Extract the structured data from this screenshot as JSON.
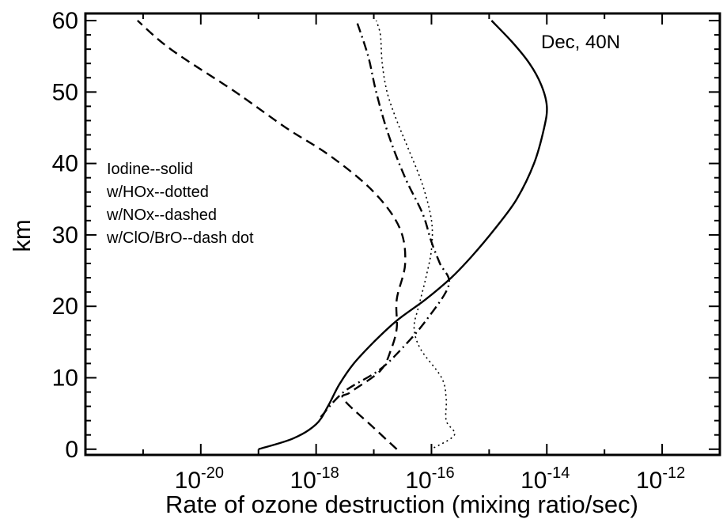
{
  "chart_data": {
    "type": "line",
    "title": "",
    "xlabel": "Rate of ozone destruction (mixing ratio/sec)",
    "ylabel": "km",
    "xscale": "log",
    "xlim": [
      1e-22,
      1e-11
    ],
    "ylim": [
      -0.8,
      61
    ],
    "x_ticks": [
      {
        "base": "10",
        "exp": "-20"
      },
      {
        "base": "10",
        "exp": "-18"
      },
      {
        "base": "10",
        "exp": "-16"
      },
      {
        "base": "10",
        "exp": "-14"
      },
      {
        "base": "10",
        "exp": "-12"
      }
    ],
    "x_tick_values": [
      1e-20,
      1e-18,
      1e-16,
      1e-14,
      1e-12
    ],
    "y_ticks": [
      "0",
      "10",
      "20",
      "30",
      "40",
      "50",
      "60"
    ],
    "y_tick_values": [
      0,
      10,
      20,
      30,
      40,
      50,
      60
    ],
    "grid": false,
    "annotation": "Dec, 40N",
    "legend_lines": [
      "Iodine--solid",
      "w/HOx--dotted",
      "w/NOx--dashed",
      "w/ClO/BrO--dash dot"
    ],
    "series": [
      {
        "style": "solid",
        "points": [
          [
            1e-19,
            0
          ],
          [
            4e-19,
            1.5
          ],
          [
            1e-18,
            3.5
          ],
          [
            1.6e-18,
            6
          ],
          [
            2.5e-18,
            9
          ],
          [
            4.5e-18,
            12
          ],
          [
            1e-17,
            15
          ],
          [
            2.5e-17,
            18
          ],
          [
            8e-17,
            21
          ],
          [
            2.2e-16,
            24
          ],
          [
            5e-16,
            27
          ],
          [
            1.3e-15,
            31
          ],
          [
            3e-15,
            35
          ],
          [
            6e-15,
            40
          ],
          [
            9e-15,
            45
          ],
          [
            1e-14,
            48
          ],
          [
            8e-15,
            51
          ],
          [
            5e-15,
            54
          ],
          [
            2.5e-15,
            57
          ],
          [
            1.1e-15,
            60
          ]
        ]
      },
      {
        "style": "dotted",
        "points": [
          [
            1.1e-16,
            0.2
          ],
          [
            2.5e-16,
            2
          ],
          [
            1.8e-16,
            4
          ],
          [
            1.8e-16,
            7
          ],
          [
            1.5e-16,
            10
          ],
          [
            6.5e-17,
            14
          ],
          [
            5e-17,
            17
          ],
          [
            6e-17,
            20
          ],
          [
            8e-17,
            24
          ],
          [
            1e-16,
            28
          ],
          [
            1e-16,
            32
          ],
          [
            7e-17,
            37
          ],
          [
            4e-17,
            42
          ],
          [
            2.5e-17,
            46
          ],
          [
            1.7e-17,
            50
          ],
          [
            1.4e-17,
            54
          ],
          [
            1.3e-17,
            58
          ],
          [
            1.1e-17,
            60
          ]
        ]
      },
      {
        "style": "dashed",
        "points": [
          [
            2.5e-17,
            0
          ],
          [
            1e-17,
            3
          ],
          [
            3e-18,
            7
          ],
          [
            4e-18,
            8
          ],
          [
            1.3e-17,
            11
          ],
          [
            2e-17,
            14
          ],
          [
            2.5e-17,
            17
          ],
          [
            2.5e-17,
            21
          ],
          [
            3.5e-17,
            26
          ],
          [
            2.8e-17,
            31
          ],
          [
            1e-17,
            36
          ],
          [
            1.8e-18,
            41
          ],
          [
            3e-19,
            45
          ],
          [
            4e-20,
            50
          ],
          [
            3e-21,
            56
          ],
          [
            8e-22,
            60
          ]
        ]
      },
      {
        "style": "dash-dot",
        "points": [
          [
            1.2e-18,
            4.5
          ],
          [
            3e-18,
            8
          ],
          [
            1.2e-17,
            11
          ],
          [
            3e-17,
            14
          ],
          [
            8e-17,
            18
          ],
          [
            2e-16,
            23
          ],
          [
            1.4e-16,
            26
          ],
          [
            1e-16,
            29
          ],
          [
            7e-17,
            33
          ],
          [
            3.5e-17,
            38
          ],
          [
            1.8e-17,
            44
          ],
          [
            1.1e-17,
            50
          ],
          [
            8e-18,
            55
          ],
          [
            5e-18,
            60
          ]
        ]
      }
    ]
  }
}
